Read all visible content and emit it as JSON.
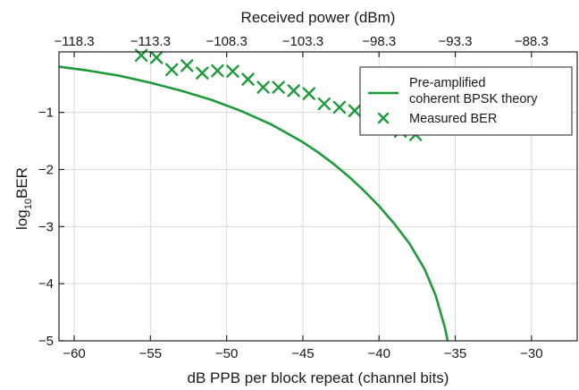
{
  "chart_data": {
    "type": "line",
    "xlabel": "dB PPB per block repeat (channel bits)",
    "x2label": "Received power (dBm)",
    "ylabel_main": "log",
    "ylabel_sub": "10",
    "ylabel_tail": "BER",
    "xlim": [
      -61,
      -27
    ],
    "ylim": [
      -5,
      0
    ],
    "x_ticks": [
      -60,
      -55,
      -50,
      -45,
      -40,
      -35,
      -30
    ],
    "x_tick_labels": [
      "−60",
      "−55",
      "−50",
      "−45",
      "−40",
      "−35",
      "−30"
    ],
    "x2_tick_labels": [
      "−118.3",
      "−113.3",
      "−108.3",
      "−103.3",
      "−98.3",
      "−93.3",
      "−88.3"
    ],
    "y_ticks": [
      -1,
      -2,
      -3,
      -4,
      -5
    ],
    "y_tick_labels": [
      "−1",
      "−2",
      "−3",
      "−4",
      "−5"
    ],
    "grid": true,
    "series": [
      {
        "name": "Pre-amplified coherent BPSK theory",
        "name_lines": [
          "Pre-amplified",
          "coherent BPSK theory"
        ],
        "kind": "line",
        "color": "#1e9a3c",
        "points": [
          [
            -61.0,
            -0.2
          ],
          [
            -59.0,
            -0.27
          ],
          [
            -57.0,
            -0.36
          ],
          [
            -55.0,
            -0.48
          ],
          [
            -53.0,
            -0.62
          ],
          [
            -51.0,
            -0.78
          ],
          [
            -49.0,
            -0.98
          ],
          [
            -47.0,
            -1.22
          ],
          [
            -45.0,
            -1.52
          ],
          [
            -44.0,
            -1.7
          ],
          [
            -43.0,
            -1.9
          ],
          [
            -42.0,
            -2.12
          ],
          [
            -41.0,
            -2.37
          ],
          [
            -40.0,
            -2.64
          ],
          [
            -39.0,
            -2.95
          ],
          [
            -38.0,
            -3.3
          ],
          [
            -37.0,
            -3.75
          ],
          [
            -36.3,
            -4.2
          ],
          [
            -35.7,
            -4.75
          ],
          [
            -35.5,
            -5.0
          ]
        ]
      },
      {
        "name": "Measured BER",
        "kind": "scatter",
        "marker": "x",
        "color": "#1e9a3c",
        "points": [
          [
            -55.6,
            0.0
          ],
          [
            -54.6,
            -0.04
          ],
          [
            -53.6,
            -0.25
          ],
          [
            -52.6,
            -0.18
          ],
          [
            -51.6,
            -0.31
          ],
          [
            -50.6,
            -0.27
          ],
          [
            -49.6,
            -0.28
          ],
          [
            -48.6,
            -0.42
          ],
          [
            -47.6,
            -0.56
          ],
          [
            -46.6,
            -0.56
          ],
          [
            -45.6,
            -0.62
          ],
          [
            -44.6,
            -0.67
          ],
          [
            -43.6,
            -0.85
          ],
          [
            -42.6,
            -0.91
          ],
          [
            -41.6,
            -0.97
          ],
          [
            -40.6,
            -1.12
          ],
          [
            -39.6,
            -1.12
          ],
          [
            -38.6,
            -1.33
          ],
          [
            -37.6,
            -1.39
          ]
        ]
      }
    ],
    "legend_position": "top-right"
  }
}
